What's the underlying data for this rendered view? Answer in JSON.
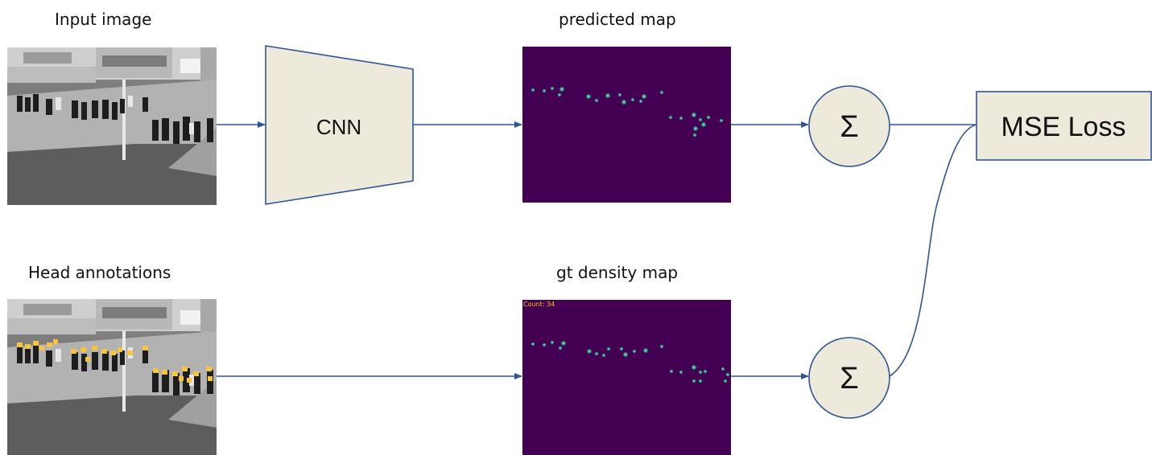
{
  "labels": {
    "input_image": "Input image",
    "predicted_map": "predicted map",
    "head_annotations": "Head annotations",
    "gt_density_map": "gt density map"
  },
  "nodes": {
    "cnn": "CNN",
    "sum_top": "Σ",
    "sum_bottom": "Σ",
    "mse_loss": "MSE Loss"
  },
  "gt_count_label": "Count: 34",
  "colors": {
    "node_fill": "#eeeadb",
    "edge": "#2f5597",
    "density_background": "#440154",
    "density_blob": "#35b779",
    "annotation_marker": "#f5c542"
  }
}
